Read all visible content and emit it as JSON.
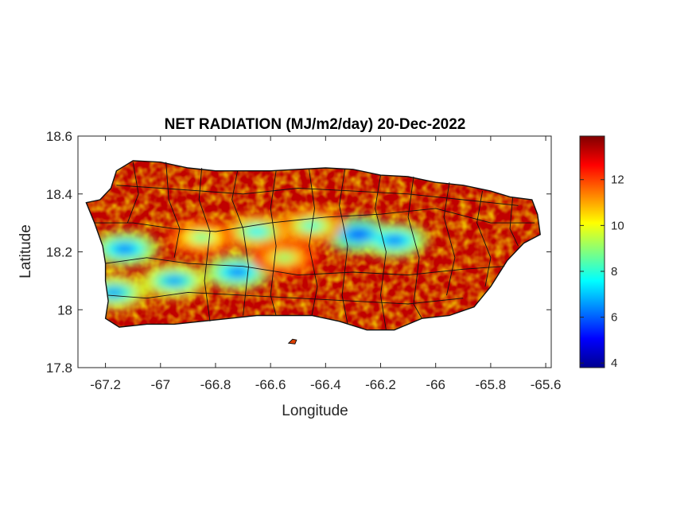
{
  "chart_data": {
    "type": "heatmap",
    "title": "NET RADIATION (MJ/m2/day) 20-Dec-2022",
    "xlabel": "Longitude",
    "ylabel": "Latitude",
    "xlim": [
      -67.3,
      -65.58
    ],
    "ylim": [
      17.8,
      18.6
    ],
    "x_ticks": [
      -67.2,
      -67,
      -66.8,
      -66.6,
      -66.4,
      -66.2,
      -66,
      -65.8,
      -65.6
    ],
    "x_tick_labels": [
      "-67.2",
      "-67",
      "-66.8",
      "-66.6",
      "-66.4",
      "-66.2",
      "-66",
      "-65.8",
      "-65.6"
    ],
    "y_ticks": [
      17.8,
      18,
      18.2,
      18.4,
      18.6
    ],
    "y_tick_labels": [
      "17.8",
      "18",
      "18.2",
      "18.4",
      "18.6"
    ],
    "colorbar": {
      "colormap": "jet",
      "range": [
        3.8,
        13.9
      ],
      "ticks": [
        4,
        6,
        8,
        10,
        12
      ],
      "tick_labels": [
        "4",
        "6",
        "8",
        "10",
        "12"
      ]
    },
    "grid": false,
    "region": "Puerto Rico",
    "low_value_zones": [
      {
        "lon": -66.28,
        "lat": 18.26,
        "value": 5.5
      },
      {
        "lon": -66.15,
        "lat": 18.24,
        "value": 6.0
      },
      {
        "lon": -66.72,
        "lat": 18.13,
        "value": 6.0
      },
      {
        "lon": -67.13,
        "lat": 18.21,
        "value": 6.0
      },
      {
        "lon": -66.95,
        "lat": 18.1,
        "value": 6.5
      },
      {
        "lon": -67.17,
        "lat": 18.06,
        "value": 6.5
      },
      {
        "lon": -66.65,
        "lat": 18.27,
        "value": 7.5
      },
      {
        "lon": -66.45,
        "lat": 18.29,
        "value": 8.0
      },
      {
        "lon": -66.85,
        "lat": 18.25,
        "value": 8.5
      },
      {
        "lon": -66.55,
        "lat": 18.18,
        "value": 9.0
      }
    ],
    "background_value": 13.2
  }
}
